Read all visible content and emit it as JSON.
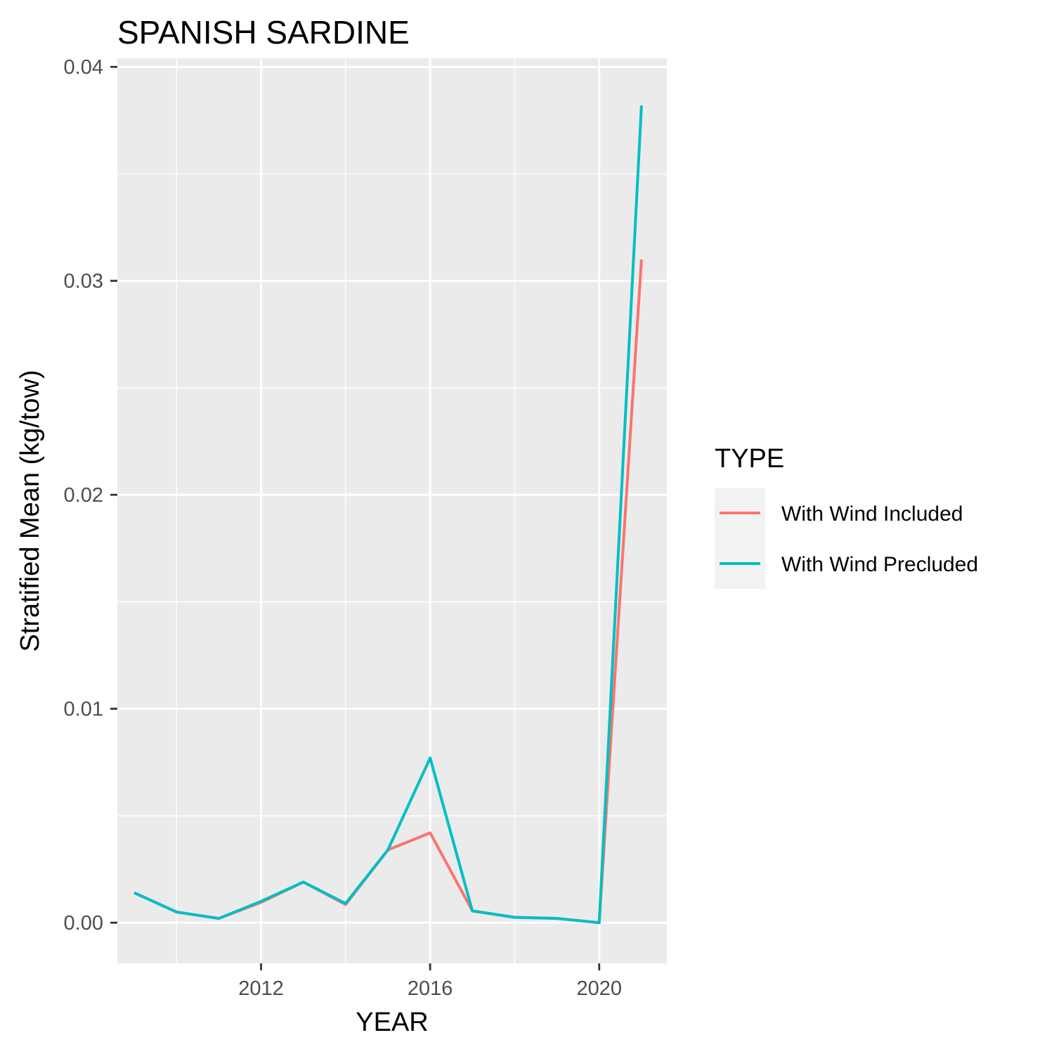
{
  "chart_data": {
    "type": "line",
    "title": "SPANISH SARDINE",
    "xlabel": "YEAR",
    "ylabel": "Stratified Mean (kg/tow)",
    "xlim": [
      2008.6,
      2021.6
    ],
    "ylim": [
      -0.0019,
      0.0404
    ],
    "x_ticks": [
      2012,
      2016,
      2020
    ],
    "x_tick_labels": [
      "2012",
      "2016",
      "2020"
    ],
    "y_ticks": [
      0.0,
      0.01,
      0.02,
      0.03,
      0.04
    ],
    "y_tick_labels": [
      "0.00",
      "0.01",
      "0.02",
      "0.03",
      "0.04"
    ],
    "grid": true,
    "legend": {
      "title": "TYPE",
      "placement": "right"
    },
    "series": [
      {
        "name": "With Wind Included",
        "color": "#F8766D",
        "x": [
          2009,
          2010,
          2011,
          2012,
          2013,
          2014,
          2015,
          2016,
          2017,
          2018,
          2019,
          2020,
          2021
        ],
        "y": [
          0.0014,
          0.0005,
          0.0002,
          0.00095,
          0.0019,
          0.00085,
          0.0034,
          0.0042,
          0.00055,
          0.00025,
          0.0002,
          0.0,
          0.031
        ]
      },
      {
        "name": "With Wind Precluded",
        "color": "#00BFC4",
        "x": [
          2009,
          2010,
          2011,
          2012,
          2013,
          2014,
          2015,
          2016,
          2017,
          2018,
          2019,
          2020,
          2021
        ],
        "y": [
          0.0014,
          0.0005,
          0.0002,
          0.001,
          0.0019,
          0.0009,
          0.0034,
          0.0077,
          0.00055,
          0.00025,
          0.0002,
          0.0,
          0.0382
        ]
      }
    ]
  }
}
